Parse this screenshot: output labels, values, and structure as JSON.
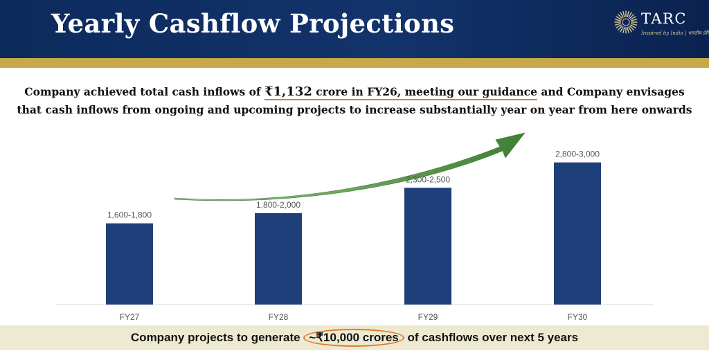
{
  "header": {
    "title": "Yearly Cashflow Projections",
    "logo": {
      "name": "TARC",
      "tagline": "Inspired by India | भारतीय प्रेरित",
      "icon": "sunburst-logo-icon"
    }
  },
  "headline": {
    "part1": "Company achieved total cash inflows of ",
    "amount": "₹1,132",
    "part2": " crore in FY26, meeting our guidance",
    "part3": " and Company envisages",
    "line2": "that cash inflows from ongoing and upcoming projects to increase substantially year on year from here onwards"
  },
  "footer": {
    "before": "Company projects to generate ",
    "highlight": "~₹10,000 crores",
    "after": " of cashflows over next 5 years"
  },
  "colors": {
    "bar": "#1f3f7a",
    "arrow": "#4a8a3c",
    "header_bg": "#0d2a5c",
    "gold": "#c7a94a",
    "accent_orange": "#e07b2a",
    "footer_bg": "#eeead2"
  },
  "chart_data": {
    "type": "bar",
    "categories": [
      "FY27",
      "FY28",
      "FY29",
      "FY30"
    ],
    "ranges": [
      [
        1600,
        1800
      ],
      [
        1800,
        2000
      ],
      [
        2300,
        2500
      ],
      [
        2800,
        3000
      ]
    ],
    "value_labels": [
      "1,600-1,800",
      "1,800-2,000",
      "2,300-2,500",
      "2,800-3,000"
    ],
    "title": "",
    "xlabel": "",
    "ylabel": "",
    "ylim": [
      0,
      3000
    ],
    "grid": false,
    "legend": "none",
    "annotation": "upward-trend-arrow-icon"
  }
}
